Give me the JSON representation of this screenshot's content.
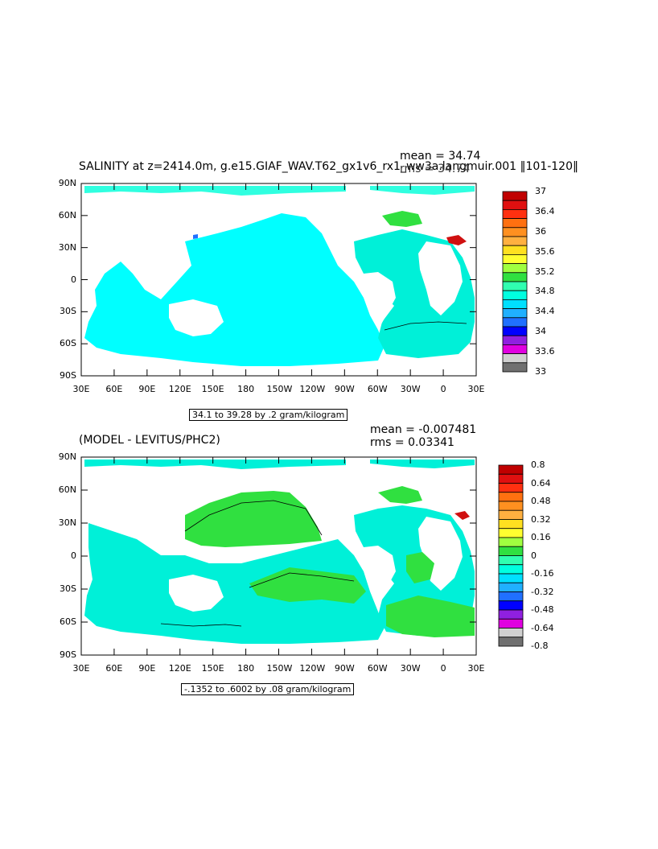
{
  "top_panel": {
    "title": "SALINITY at z=2414.0m, g.e15.GIAF_WAV.T62_gx1v6_rx1_ww3a.langmuir.001 ‖101-120‖",
    "mean_text": "mean = 34.74",
    "rms_text": "rms = 34.74",
    "contour_info": "34.1 to 39.28 by .2 gram/kilogram",
    "colorbar": {
      "labels": [
        "37",
        "36.4",
        "36",
        "35.6",
        "35.2",
        "34.8",
        "34.4",
        "34",
        "33.6",
        "33"
      ],
      "colors": [
        "#c00000",
        "#e01010",
        "#ff3010",
        "#ff7010",
        "#ff9020",
        "#ffb040",
        "#ffe020",
        "#ffff30",
        "#a0ff40",
        "#30e040",
        "#30ffb0",
        "#00ffe0",
        "#00e0ff",
        "#20b0ff",
        "#2070ff",
        "#0000ff",
        "#9020e0",
        "#e000e0",
        "#d0d0d0",
        "#707070"
      ]
    },
    "y_labels": [
      "90N",
      "60N",
      "30N",
      "0",
      "30S",
      "60S",
      "90S"
    ],
    "x_labels": [
      "30E",
      "60E",
      "90E",
      "120E",
      "150E",
      "180",
      "150W",
      "120W",
      "90W",
      "60W",
      "30W",
      "0",
      "30E"
    ]
  },
  "bottom_panel": {
    "title": "(MODEL - LEVITUS/PHC2)",
    "mean_text": "mean = -0.007481",
    "rms_text": "rms = 0.03341",
    "contour_info": "-.1352 to .6002 by .08 gram/kilogram",
    "colorbar": {
      "labels": [
        "0.8",
        "0.64",
        "0.48",
        "0.32",
        "0.16",
        "0",
        "-0.16",
        "-0.32",
        "-0.48",
        "-0.64",
        "-0.8"
      ],
      "colors": [
        "#c00000",
        "#e01010",
        "#ff3010",
        "#ff7010",
        "#ff9020",
        "#ffb040",
        "#ffe020",
        "#ffff30",
        "#a0ff40",
        "#30e040",
        "#30ffb0",
        "#00ffe0",
        "#00e0ff",
        "#20b0ff",
        "#2070ff",
        "#0000ff",
        "#9020e0",
        "#e000e0",
        "#d0d0d0",
        "#707070"
      ]
    },
    "y_labels": [
      "90N",
      "60N",
      "30N",
      "0",
      "30S",
      "60S",
      "90S"
    ],
    "x_labels": [
      "30E",
      "60E",
      "90E",
      "120E",
      "150E",
      "180",
      "150W",
      "120W",
      "90W",
      "60W",
      "30W",
      "0",
      "30E"
    ]
  },
  "map_colors": {
    "ocean_main": "#00ffff",
    "ocean_alt": "#00f0d8",
    "positive": "#30e040",
    "high": "#d01010",
    "low": "#2070ff"
  }
}
